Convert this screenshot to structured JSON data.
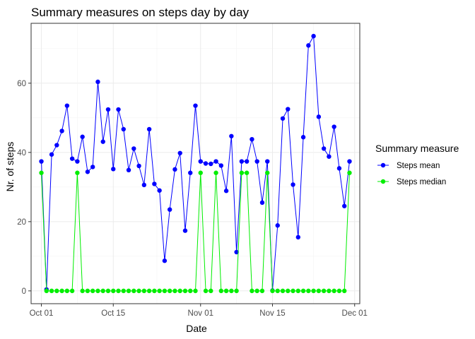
{
  "chart_data": {
    "type": "line",
    "title": "Summary measures on steps day by day",
    "xlabel": "Date",
    "ylabel": "Nr. of steps",
    "x_start": "2012-10-01",
    "x_end": "2012-11-30",
    "xlim": [
      "2012-09-29",
      "2012-12-02"
    ],
    "ylim": [
      -3.7,
      77.3
    ],
    "x_ticks": [
      {
        "date": "2012-10-01",
        "label": "Oct 01"
      },
      {
        "date": "2012-10-15",
        "label": "Oct 15"
      },
      {
        "date": "2012-11-01",
        "label": "Nov 01"
      },
      {
        "date": "2012-11-15",
        "label": "Nov 15"
      },
      {
        "date": "2012-12-01",
        "label": "Dec 01"
      }
    ],
    "y_ticks": [
      0,
      20,
      40,
      60
    ],
    "grid": true,
    "legend": {
      "title": "Summary measure",
      "position": "right"
    },
    "series": [
      {
        "name": "Steps mean",
        "color": "#0000ff",
        "values": [
          37.4,
          0.4,
          39.4,
          42.1,
          46.2,
          53.5,
          38.2,
          37.4,
          44.5,
          34.4,
          35.8,
          60.4,
          43.1,
          52.4,
          35.2,
          52.4,
          46.7,
          34.9,
          41.1,
          36.1,
          30.6,
          46.7,
          30.9,
          29.0,
          8.7,
          23.5,
          35.1,
          39.8,
          17.4,
          34.1,
          53.5,
          37.4,
          36.8,
          36.7,
          37.4,
          36.2,
          28.9,
          44.7,
          11.2,
          37.4,
          37.4,
          43.8,
          37.4,
          25.5,
          37.4,
          0.1,
          18.9,
          49.8,
          52.5,
          30.7,
          15.5,
          44.4,
          70.9,
          73.6,
          50.3,
          41.1,
          38.8,
          47.4,
          35.4,
          24.5,
          37.4
        ]
      },
      {
        "name": "Steps median",
        "color": "#00ee00",
        "values": [
          34.1,
          0,
          0,
          0,
          0,
          0,
          0,
          34.1,
          0,
          0,
          0,
          0,
          0,
          0,
          0,
          0,
          0,
          0,
          0,
          0,
          0,
          0,
          0,
          0,
          0,
          0,
          0,
          0,
          0,
          0,
          0,
          34.1,
          0,
          0,
          34.1,
          0,
          0,
          0,
          0,
          34.1,
          34.1,
          0,
          0,
          0,
          34.1,
          0,
          0,
          0,
          0,
          0,
          0,
          0,
          0,
          0,
          0,
          0,
          0,
          0,
          0,
          0,
          34.1
        ]
      }
    ]
  }
}
